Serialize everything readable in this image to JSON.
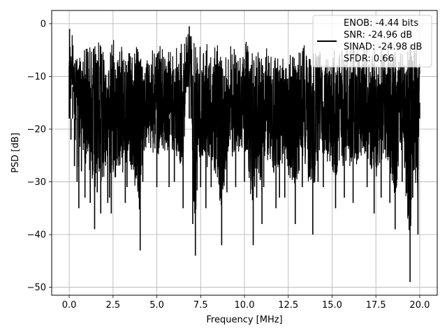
{
  "chart_data": {
    "type": "line",
    "title": "",
    "xlabel": "Frequency [MHz]",
    "ylabel": "PSD [dB]",
    "xlim": [
      -1.0,
      21.0
    ],
    "ylim": [
      -51.5,
      2.5
    ],
    "x_ticks": [
      0.0,
      2.5,
      5.0,
      7.5,
      10.0,
      12.5,
      15.0,
      17.5,
      20.0
    ],
    "x_tick_labels": [
      "0.0",
      "2.5",
      "5.0",
      "7.5",
      "10.0",
      "12.5",
      "15.0",
      "17.5",
      "20.0"
    ],
    "y_ticks": [
      0,
      -10,
      -20,
      -30,
      -40,
      -50
    ],
    "y_tick_labels": [
      "0",
      "−10",
      "−20",
      "−30",
      "−40",
      "−50"
    ],
    "grid": true,
    "legend": {
      "placement": "top-right",
      "entries": [
        "ENOB: -4.44 bits",
        "SNR: -24.96 dB",
        "SINAD: -24.98 dB",
        "SFDR: 0.66"
      ]
    },
    "series": [
      {
        "color": "#000000",
        "x_range": [
          0.0,
          20.0
        ],
        "points": [
          [
            0.0,
            -8
          ],
          [
            0.02,
            -1
          ],
          [
            0.05,
            -10
          ],
          [
            0.1,
            -22
          ],
          [
            0.2,
            -12
          ],
          [
            0.3,
            -27
          ],
          [
            0.45,
            -30
          ],
          [
            0.55,
            -35
          ],
          [
            0.7,
            -28
          ],
          [
            0.9,
            -33
          ],
          [
            1.2,
            -34
          ],
          [
            1.45,
            -39
          ],
          [
            1.6,
            -32
          ],
          [
            1.8,
            -36
          ],
          [
            2.2,
            -34
          ],
          [
            2.3,
            -33
          ],
          [
            2.4,
            -36
          ],
          [
            3.2,
            -34
          ],
          [
            3.3,
            -31
          ],
          [
            4.05,
            -43
          ],
          [
            4.2,
            -30
          ],
          [
            5.0,
            -31
          ],
          [
            5.7,
            -31
          ],
          [
            6.0,
            -30
          ],
          [
            6.5,
            -35
          ],
          [
            6.85,
            -0.5
          ],
          [
            6.95,
            -5
          ],
          [
            7.05,
            -38
          ],
          [
            7.2,
            -44
          ],
          [
            7.5,
            -31
          ],
          [
            7.8,
            -35
          ],
          [
            8.1,
            -31
          ],
          [
            8.7,
            -42
          ],
          [
            9.0,
            -32
          ],
          [
            9.5,
            -31
          ],
          [
            10.0,
            -30
          ],
          [
            10.5,
            -42
          ],
          [
            10.7,
            -33
          ],
          [
            11.0,
            -38
          ],
          [
            11.1,
            -31
          ],
          [
            11.8,
            -35
          ],
          [
            12.0,
            -33
          ],
          [
            12.3,
            -33
          ],
          [
            12.9,
            -38
          ],
          [
            13.3,
            -31
          ],
          [
            13.9,
            -40
          ],
          [
            14.2,
            -30
          ],
          [
            14.5,
            -31
          ],
          [
            15.2,
            -35
          ],
          [
            15.7,
            -33
          ],
          [
            16.2,
            -34
          ],
          [
            17.0,
            -31
          ],
          [
            17.4,
            -36
          ],
          [
            17.8,
            -33
          ],
          [
            18.3,
            -34
          ],
          [
            18.6,
            -39
          ],
          [
            19.0,
            -30
          ],
          [
            19.45,
            -49
          ],
          [
            19.6,
            -33
          ],
          [
            19.9,
            -40
          ],
          [
            20.0,
            -15
          ]
        ]
      }
    ]
  }
}
